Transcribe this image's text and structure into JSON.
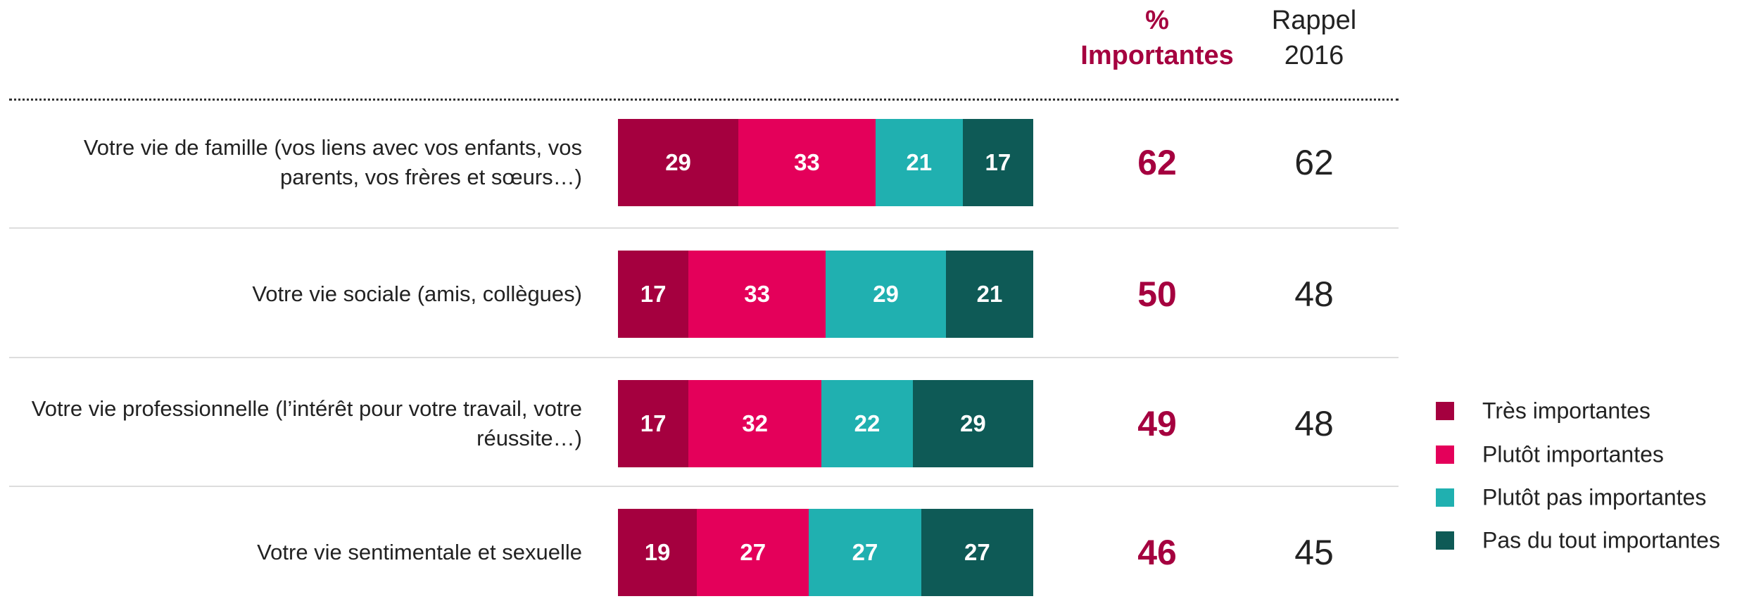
{
  "chart_data": {
    "type": "stacked_bar",
    "categories": [
      "Votre vie de famille (vos liens avec vos enfants, vos parents, vos frères et sœurs…)",
      "Votre vie sociale (amis, collègues)",
      "Votre vie professionnelle (l’intérêt pour votre travail, votre réussite…)",
      "Votre vie sentimentale et sexuelle"
    ],
    "xlim": [
      0,
      100
    ],
    "series": [
      {
        "name": "Très importantes",
        "color": "#a5003f",
        "values": [
          29,
          17,
          17,
          19
        ]
      },
      {
        "name": "Plutôt importantes",
        "color": "#e4005a",
        "values": [
          33,
          33,
          32,
          27
        ]
      },
      {
        "name": "Plutôt pas importantes",
        "color": "#20b0b0",
        "values": [
          21,
          29,
          22,
          27
        ]
      },
      {
        "name": "Pas du tout importantes",
        "color": "#0e5a56",
        "values": [
          17,
          21,
          29,
          27
        ]
      }
    ],
    "columns": [
      {
        "name": "% Importantes",
        "color": "#a5003f",
        "values": [
          62,
          50,
          49,
          46
        ]
      },
      {
        "name": "Rappel 2016",
        "color": "#222222",
        "values": [
          62,
          48,
          48,
          45
        ]
      }
    ],
    "legend": "right"
  }
}
